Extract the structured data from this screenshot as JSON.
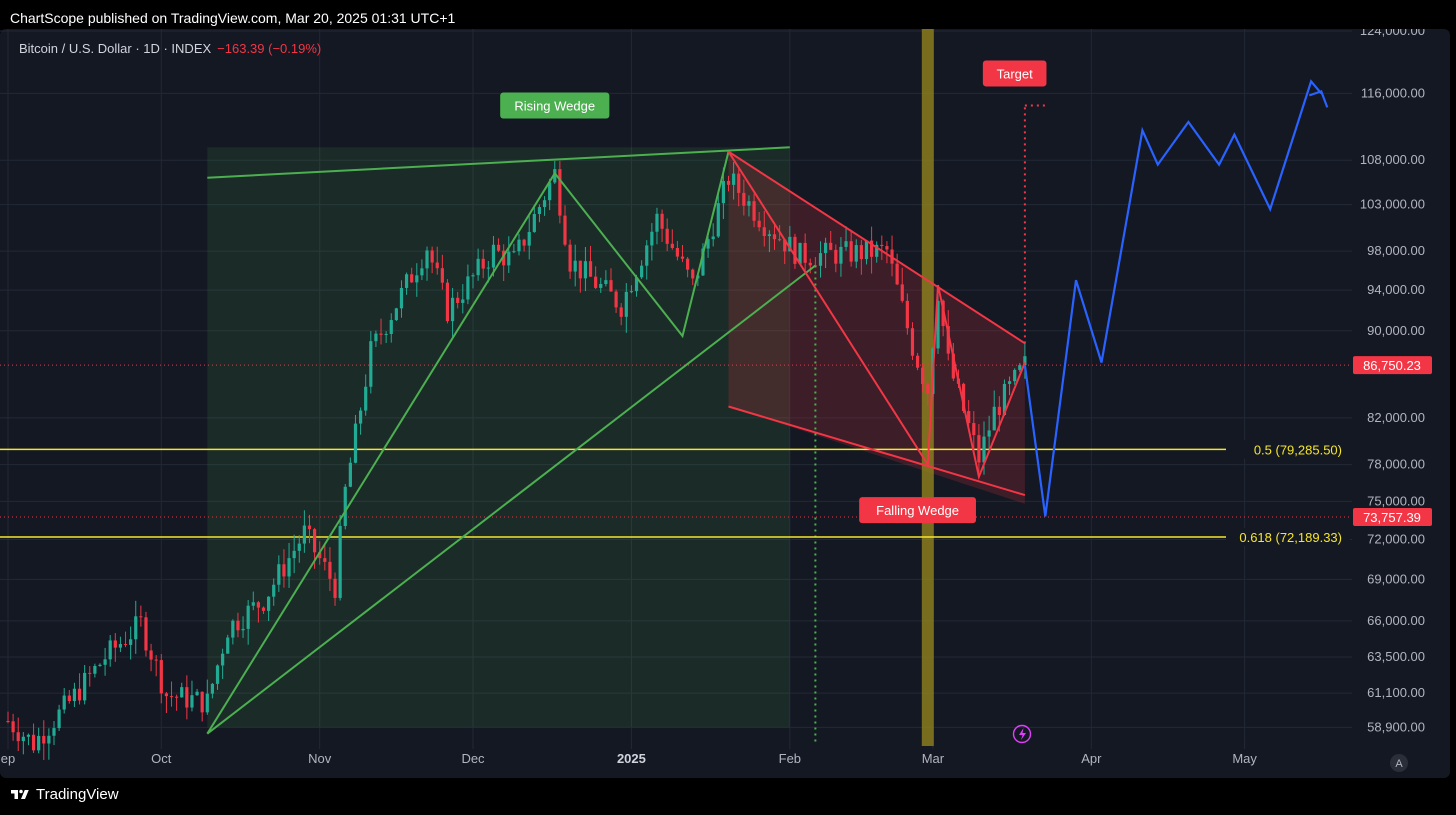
{
  "publish_line": "ChartScope published on TradingView.com, Mar 20, 2025 01:31 UTC+1",
  "footer_brand": "TradingView",
  "legend": {
    "symbol": "Bitcoin / U.S. Dollar · 1D · INDEX",
    "change": "−163.39 (−0.19%)"
  },
  "colors": {
    "background": "#141823",
    "up": "#22ab94",
    "down": "#f23645",
    "green_pattern": "#4caf50",
    "red_pattern": "#f23645",
    "fib": "#f5e52c",
    "projection": "#2962ff",
    "axis_text": "#b2b5be",
    "event_band": "#8a7d1f"
  },
  "chart_data": {
    "type": "candlestick",
    "title": "Bitcoin / U.S. Dollar · 1D · INDEX",
    "y_scale": "log",
    "ylim": [
      57800,
      124000
    ],
    "xlim": [
      "2024-09-01",
      "2025-05-31"
    ],
    "grid": true,
    "y_ticks": [
      "124,000.00",
      "116,000.00",
      "108,000.00",
      "103,000.00",
      "98,000.00",
      "94,000.00",
      "90,000.00",
      "82,000.00",
      "78,000.00",
      "75,000.00",
      "72,000.00",
      "69,000.00",
      "66,000.00",
      "63,500.00",
      "61,100.00",
      "58,900.00"
    ],
    "x_ticks": [
      {
        "label": "ep",
        "date": "2024-09-01"
      },
      {
        "label": "Oct",
        "date": "2024-10-01"
      },
      {
        "label": "Nov",
        "date": "2024-11-01"
      },
      {
        "label": "Dec",
        "date": "2024-12-01"
      },
      {
        "label": "2025",
        "date": "2025-01-01"
      },
      {
        "label": "Feb",
        "date": "2025-02-01"
      },
      {
        "label": "Mar",
        "date": "2025-03-01"
      },
      {
        "label": "Apr",
        "date": "2025-04-01"
      },
      {
        "label": "May",
        "date": "2025-05-01"
      }
    ],
    "price_keypoints": [
      {
        "date": "2024-09-01",
        "close": 59300
      },
      {
        "date": "2024-09-06",
        "close": 57900
      },
      {
        "date": "2024-09-13",
        "close": 60500
      },
      {
        "date": "2024-09-20",
        "close": 63500
      },
      {
        "date": "2024-09-27",
        "close": 65800
      },
      {
        "date": "2024-10-02",
        "close": 61000
      },
      {
        "date": "2024-10-10",
        "close": 60500
      },
      {
        "date": "2024-10-14",
        "close": 65500
      },
      {
        "date": "2024-10-21",
        "close": 67500
      },
      {
        "date": "2024-10-29",
        "close": 72500
      },
      {
        "date": "2024-11-04",
        "close": 68500
      },
      {
        "date": "2024-11-06",
        "close": 75800
      },
      {
        "date": "2024-11-11",
        "close": 88000
      },
      {
        "date": "2024-11-22",
        "close": 98500
      },
      {
        "date": "2024-11-26",
        "close": 92000
      },
      {
        "date": "2024-12-05",
        "close": 98000
      },
      {
        "date": "2024-12-09",
        "close": 97000
      },
      {
        "date": "2024-12-17",
        "close": 106500
      },
      {
        "date": "2024-12-20",
        "close": 97000
      },
      {
        "date": "2024-12-30",
        "close": 92500
      },
      {
        "date": "2025-01-06",
        "close": 101500
      },
      {
        "date": "2025-01-13",
        "close": 94500
      },
      {
        "date": "2025-01-20",
        "close": 106000
      },
      {
        "date": "2025-01-27",
        "close": 101000
      },
      {
        "date": "2025-02-03",
        "close": 97500
      },
      {
        "date": "2025-02-20",
        "close": 98000
      },
      {
        "date": "2025-02-25",
        "close": 88500
      },
      {
        "date": "2025-02-28",
        "close": 84500
      },
      {
        "date": "2025-03-02",
        "close": 94000
      },
      {
        "date": "2025-03-04",
        "close": 87000
      },
      {
        "date": "2025-03-10",
        "close": 78500
      },
      {
        "date": "2025-03-13",
        "close": 82500
      },
      {
        "date": "2025-03-19",
        "close": 86750
      }
    ],
    "last_price_label": "86,750.23",
    "low_price_label": "73,757.39",
    "low_price_value": 73757.39,
    "last_price_value": 86750.23,
    "fib_levels": [
      {
        "label": "0.5 (79,285.50)",
        "value": 79285.5
      },
      {
        "label": "0.618 (72,189.33)",
        "value": 72189.33
      }
    ],
    "patterns": [
      {
        "name": "Rising Wedge",
        "color": "green",
        "box": {
          "x0": "2024-10-10",
          "x1": "2025-02-01",
          "y0": 58900,
          "y1": 109500
        },
        "lines": [
          [
            [
              "2024-10-10",
              106000
            ],
            [
              "2025-02-01",
              109500
            ]
          ],
          [
            [
              "2024-10-10",
              58500
            ],
            [
              "2025-02-06",
              96500
            ]
          ],
          [
            [
              "2024-10-10",
              58500
            ],
            [
              "2024-12-17",
              106500
            ],
            [
              "2025-01-11",
              89500
            ],
            [
              "2025-01-20",
              109000
            ]
          ]
        ]
      },
      {
        "name": "Falling Wedge",
        "color": "red",
        "box": {
          "x0": "2025-01-20",
          "x1": "2025-03-19",
          "y0": 74800,
          "y1": 109000
        },
        "lines": [
          [
            [
              "2025-01-20",
              109000
            ],
            [
              "2025-03-19",
              88800
            ]
          ],
          [
            [
              "2025-01-20",
              83000
            ],
            [
              "2025-03-19",
              75500
            ]
          ],
          [
            [
              "2025-01-20",
              109000
            ],
            [
              "2025-02-28",
              78000
            ],
            [
              "2025-03-02",
              94500
            ],
            [
              "2025-03-10",
              77000
            ],
            [
              "2025-03-19",
              87000
            ]
          ]
        ]
      }
    ],
    "annotations": [
      {
        "text": "Rising Wedge",
        "date": "2024-12-17",
        "value": 114500,
        "color": "green"
      },
      {
        "text": "Falling Wedge",
        "date": "2025-02-26",
        "value": 74300,
        "color": "red"
      },
      {
        "text": "Target",
        "date": "2025-03-17",
        "value": 118500,
        "color": "red"
      }
    ],
    "target_line": {
      "date": "2025-03-19",
      "from": 88800,
      "to": 114500
    },
    "event_band_date": "2025-02-28",
    "event_vline_date": "2025-02-06",
    "projection": [
      [
        "2025-03-19",
        86750
      ],
      [
        "2025-03-21",
        80000
      ],
      [
        "2025-03-23",
        73800
      ],
      [
        "2025-03-29",
        95000
      ],
      [
        "2025-04-03",
        87000
      ],
      [
        "2025-04-11",
        111500
      ],
      [
        "2025-04-14",
        107500
      ],
      [
        "2025-04-20",
        112500
      ],
      [
        "2025-04-26",
        107500
      ],
      [
        "2025-04-29",
        111000
      ],
      [
        "2025-05-06",
        102500
      ],
      [
        "2025-05-14",
        117500
      ],
      [
        "2025-05-16",
        116000
      ]
    ]
  }
}
